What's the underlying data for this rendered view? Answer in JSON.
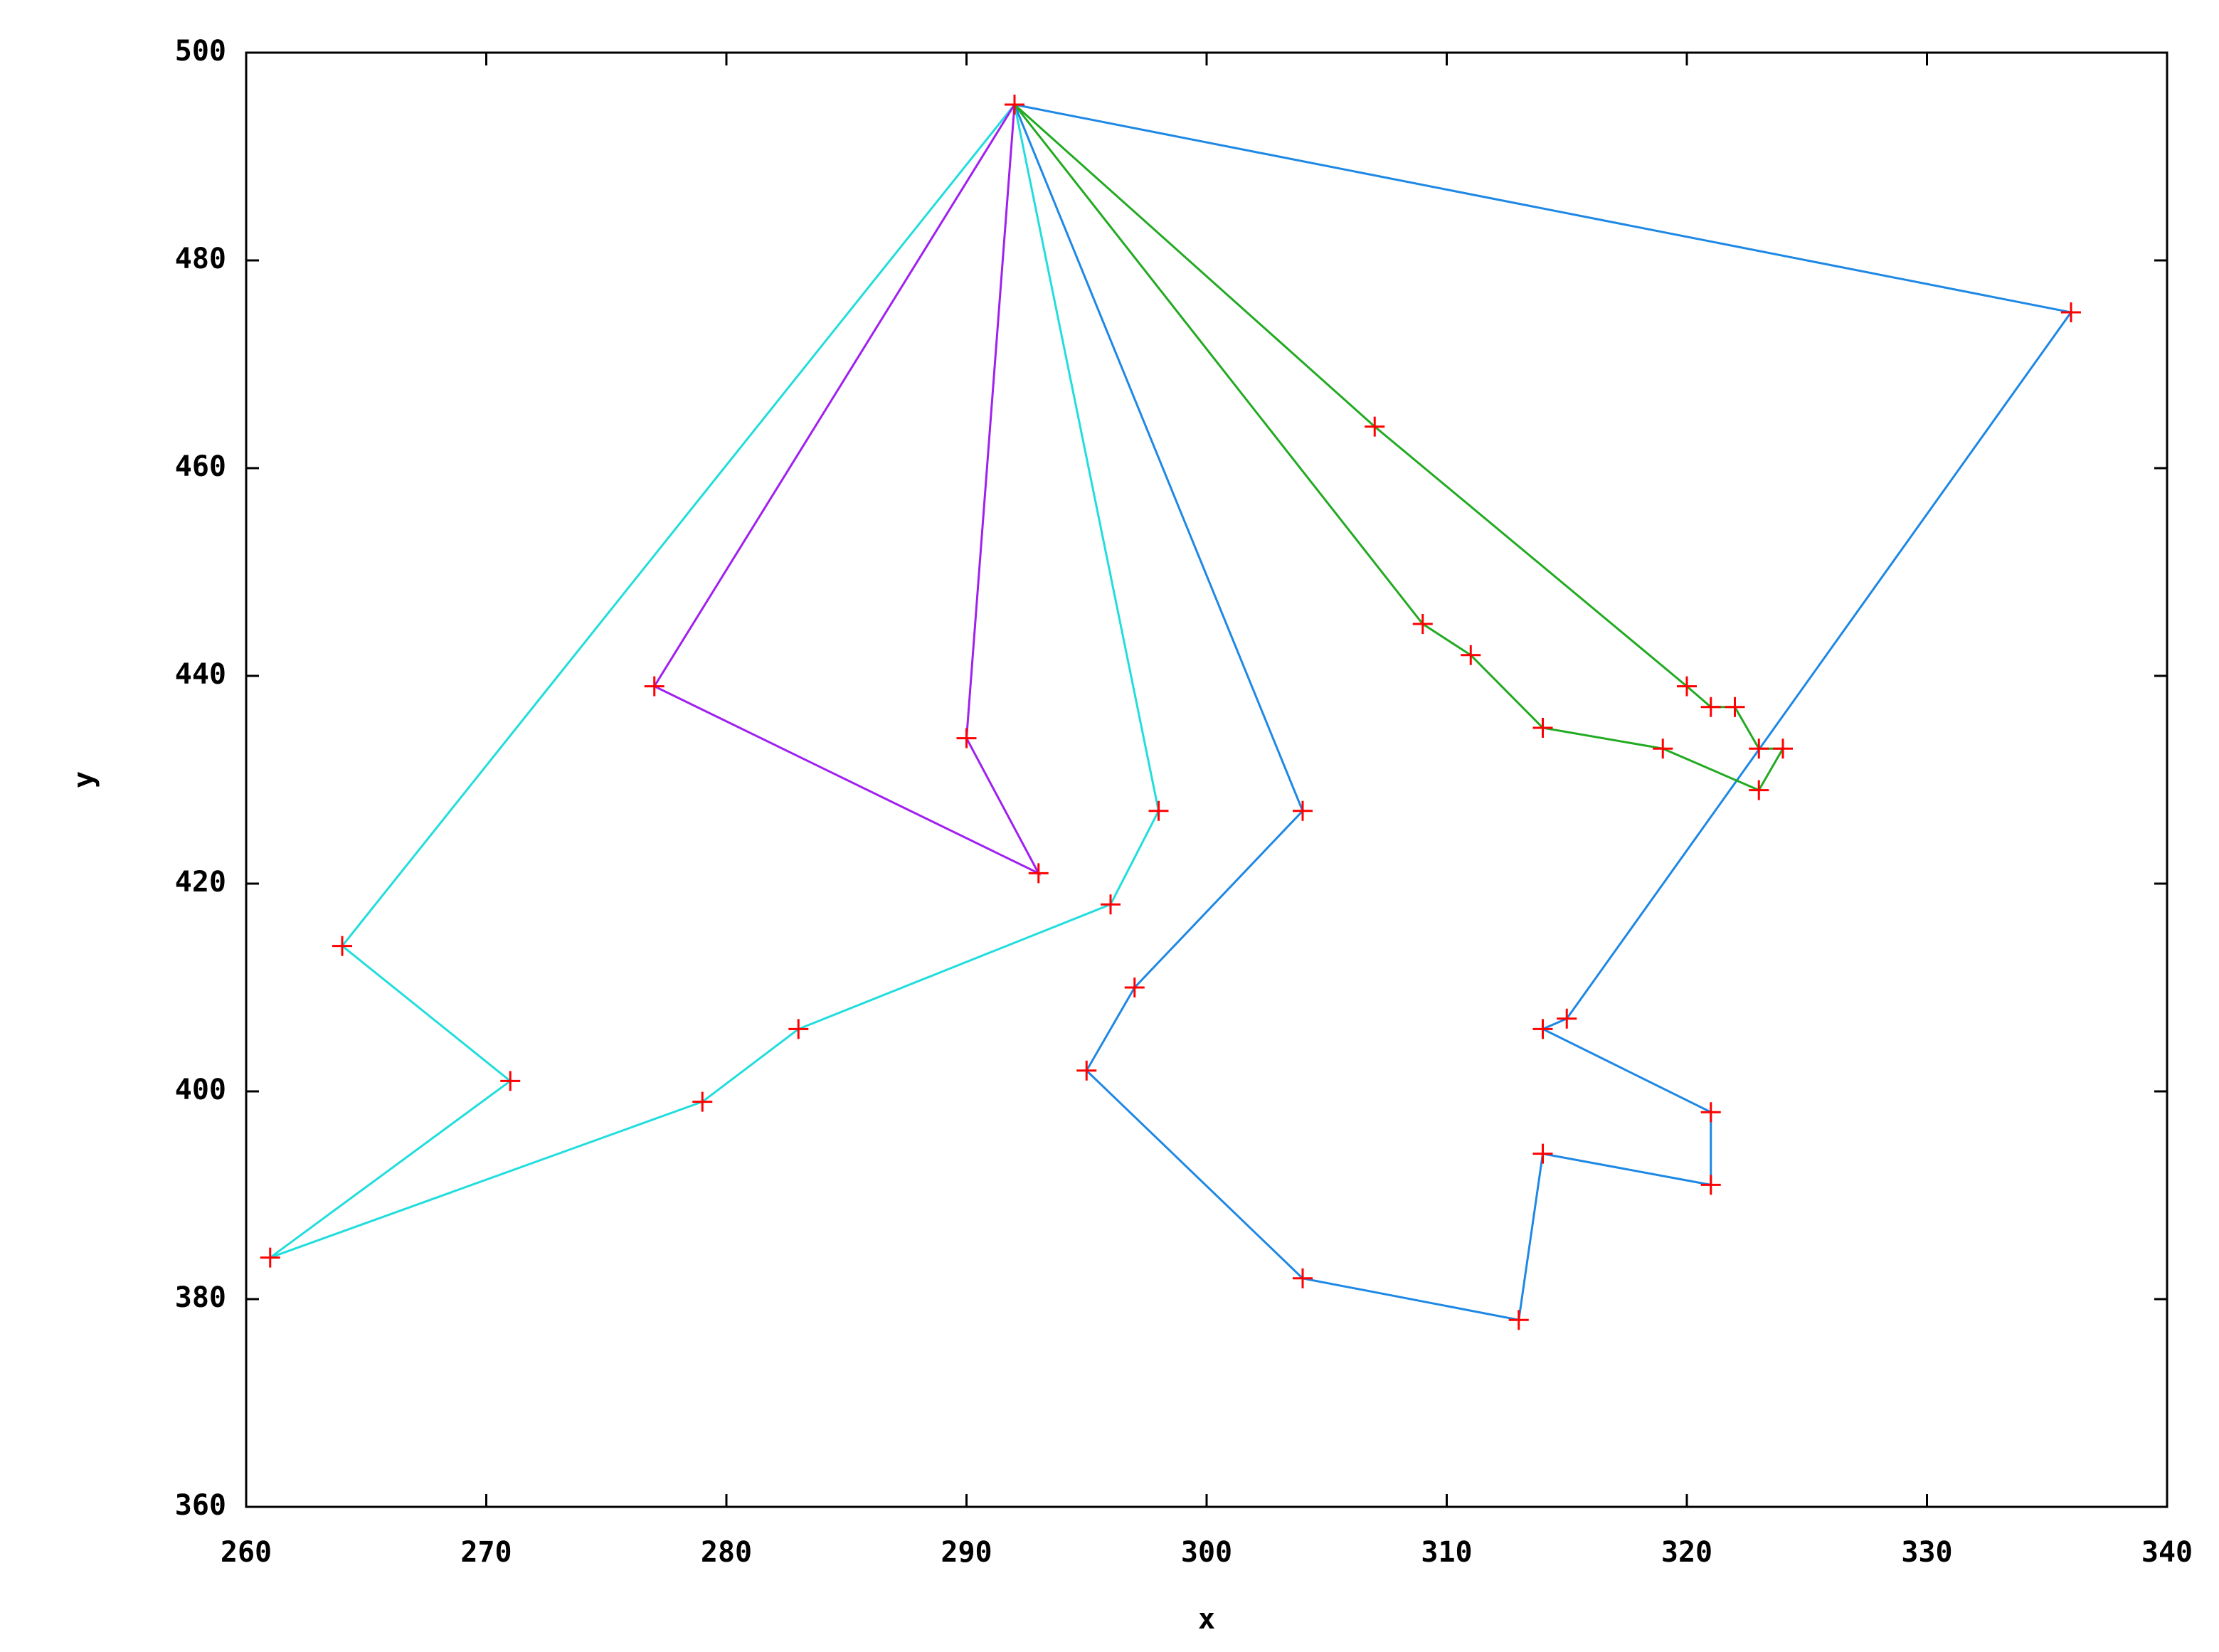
{
  "chart_data": {
    "type": "line",
    "xlabel": "x",
    "ylabel": "y",
    "xlim": [
      260,
      340
    ],
    "ylim": [
      360,
      500
    ],
    "xticks": [
      260,
      270,
      280,
      290,
      300,
      310,
      320,
      330,
      340
    ],
    "yticks": [
      360,
      380,
      400,
      420,
      440,
      460,
      480,
      500
    ],
    "marker": "+",
    "marker_color": "#ff0000",
    "series": [
      {
        "color": "#22dddd",
        "x": [
          292,
          264,
          271,
          261,
          279,
          283,
          296,
          298,
          292
        ],
        "y": [
          495,
          414,
          401,
          384,
          399,
          406,
          418,
          427,
          495
        ]
      },
      {
        "color": "#a020f0",
        "x": [
          292,
          277,
          293,
          290,
          292
        ],
        "y": [
          495,
          439,
          421,
          434,
          495
        ]
      },
      {
        "color": "#1e88e5",
        "x": [
          292,
          304,
          297,
          295,
          304,
          313,
          314,
          321,
          321,
          314,
          315,
          336,
          292
        ],
        "y": [
          495,
          427,
          410,
          402,
          382,
          378,
          394,
          391,
          398,
          406,
          407,
          475,
          495
        ]
      },
      {
        "color": "#22aa22",
        "x": [
          292,
          307,
          320,
          321,
          322,
          323,
          324,
          323,
          319,
          314,
          311,
          309,
          292
        ],
        "y": [
          495,
          464,
          439,
          437,
          437,
          433,
          433,
          429,
          433,
          435,
          442,
          445,
          495
        ]
      }
    ]
  }
}
